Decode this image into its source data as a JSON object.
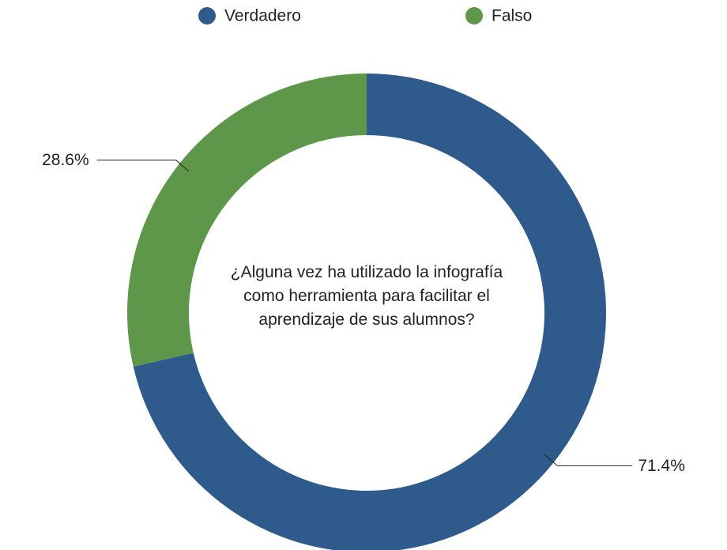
{
  "chart_data": {
    "type": "donut",
    "title": "¿Alguna vez ha utilizado la infografía como herramienta para facilitar el aprendizaje de sus alumnos?",
    "categories": [
      "Verdadero",
      "Falso"
    ],
    "values": [
      71.4,
      28.6
    ],
    "value_labels": [
      "71.4%",
      "28.6%"
    ],
    "colors": [
      "#2e5a8c",
      "#5e9749"
    ],
    "legend": "top"
  }
}
